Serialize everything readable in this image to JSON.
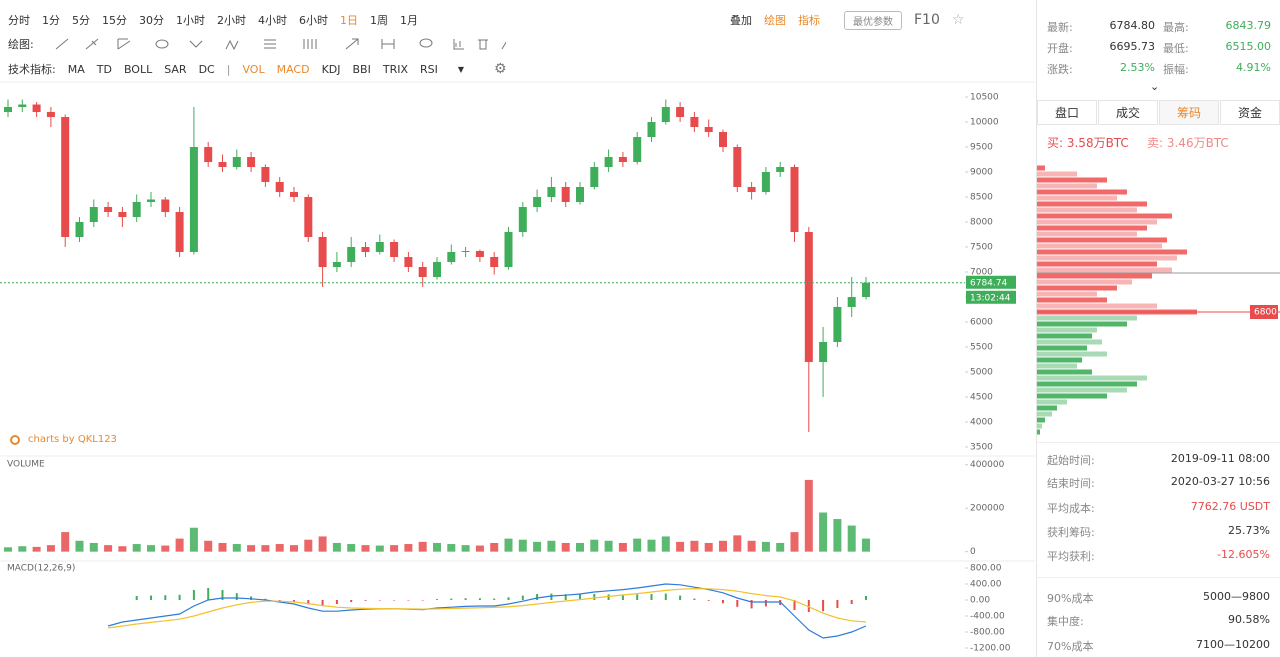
{
  "toolbar": {
    "periods": [
      "分时",
      "1分",
      "5分",
      "15分",
      "30分",
      "1小时",
      "2小时",
      "4小时",
      "6小时",
      "1日",
      "1周",
      "1月"
    ],
    "active": 9,
    "tools": [
      "叠加",
      "绘图",
      "指标"
    ],
    "button": "最优参数",
    "f10": "F10"
  },
  "draw_label": "绘图:",
  "indicator_label": "技术指标:",
  "indicators": [
    "MA",
    "TD",
    "BOLL",
    "SAR",
    "DC"
  ],
  "sub_indicators": [
    "VOL",
    "MACD",
    "KDJ",
    "BBI",
    "TRIX",
    "RSI"
  ],
  "watermark": "charts by QKL123",
  "chart_data": [
    {
      "type": "candlestick",
      "up_color": "#3fae5a",
      "down_color": "#e84b4b",
      "ylim": [
        3340,
        10740
      ],
      "yticks": [
        3500,
        4000,
        4500,
        5000,
        5500,
        6000,
        6500,
        7000,
        7500,
        8000,
        8500,
        9000,
        9500,
        10000,
        10500
      ],
      "last_price": 6784.74,
      "last_time": "13:02:44",
      "candles": [
        [
          10200,
          10450,
          10100,
          10300
        ],
        [
          10300,
          10450,
          10200,
          10350
        ],
        [
          10350,
          10400,
          10100,
          10200
        ],
        [
          10200,
          10300,
          9900,
          10100
        ],
        [
          10100,
          10150,
          7500,
          7700
        ],
        [
          7700,
          8100,
          7600,
          8000
        ],
        [
          8000,
          8450,
          7900,
          8300
        ],
        [
          8300,
          8400,
          8100,
          8200
        ],
        [
          8200,
          8300,
          7900,
          8100
        ],
        [
          8100,
          8550,
          8000,
          8400
        ],
        [
          8400,
          8600,
          8300,
          8450
        ],
        [
          8450,
          8500,
          8100,
          8200
        ],
        [
          8200,
          8300,
          7300,
          7400
        ],
        [
          7400,
          10300,
          7350,
          9500
        ],
        [
          9500,
          9600,
          9100,
          9200
        ],
        [
          9200,
          9350,
          9000,
          9100
        ],
        [
          9100,
          9450,
          9050,
          9300
        ],
        [
          9300,
          9400,
          9000,
          9100
        ],
        [
          9100,
          9150,
          8700,
          8800
        ],
        [
          8800,
          8900,
          8500,
          8600
        ],
        [
          8600,
          8700,
          8400,
          8500
        ],
        [
          8500,
          8550,
          7600,
          7700
        ],
        [
          7700,
          7800,
          6700,
          7100
        ],
        [
          7100,
          7400,
          7000,
          7200
        ],
        [
          7200,
          7700,
          7100,
          7500
        ],
        [
          7500,
          7600,
          7300,
          7400
        ],
        [
          7400,
          7750,
          7350,
          7600
        ],
        [
          7600,
          7650,
          7200,
          7300
        ],
        [
          7300,
          7400,
          7000,
          7100
        ],
        [
          7100,
          7200,
          6700,
          6900
        ],
        [
          6900,
          7300,
          6850,
          7200
        ],
        [
          7200,
          7550,
          7150,
          7400
        ],
        [
          7400,
          7500,
          7300,
          7420
        ],
        [
          7420,
          7450,
          7200,
          7300
        ],
        [
          7300,
          7400,
          6950,
          7100
        ],
        [
          7100,
          7900,
          7050,
          7800
        ],
        [
          7800,
          8400,
          7700,
          8300
        ],
        [
          8300,
          8650,
          8200,
          8500
        ],
        [
          8500,
          8900,
          8400,
          8700
        ],
        [
          8700,
          8800,
          8300,
          8400
        ],
        [
          8400,
          8800,
          8350,
          8700
        ],
        [
          8700,
          9200,
          8650,
          9100
        ],
        [
          9100,
          9450,
          9000,
          9300
        ],
        [
          9300,
          9400,
          9100,
          9200
        ],
        [
          9200,
          9800,
          9150,
          9700
        ],
        [
          9700,
          10100,
          9600,
          10000
        ],
        [
          10000,
          10450,
          9950,
          10300
        ],
        [
          10300,
          10400,
          10000,
          10100
        ],
        [
          10100,
          10200,
          9800,
          9900
        ],
        [
          9900,
          10050,
          9700,
          9800
        ],
        [
          9800,
          9850,
          9400,
          9500
        ],
        [
          9500,
          9550,
          8600,
          8700
        ],
        [
          8700,
          8800,
          8450,
          8600
        ],
        [
          8600,
          9100,
          8550,
          9000
        ],
        [
          9000,
          9200,
          8900,
          9100
        ],
        [
          9100,
          9150,
          7600,
          7800
        ],
        [
          7800,
          7900,
          3800,
          5200
        ],
        [
          5200,
          5900,
          4500,
          5600
        ],
        [
          5600,
          6500,
          5500,
          6300
        ],
        [
          6300,
          6900,
          6100,
          6500
        ],
        [
          6500,
          6900,
          6450,
          6785
        ]
      ]
    },
    {
      "type": "bar",
      "title": "VOLUME",
      "ylim": [
        -20000,
        440000
      ],
      "yticks": [
        0,
        200000,
        400000
      ],
      "values": [
        20000,
        25000,
        22000,
        30000,
        90000,
        50000,
        40000,
        30000,
        25000,
        35000,
        30000,
        28000,
        60000,
        110000,
        50000,
        40000,
        35000,
        30000,
        30000,
        35000,
        30000,
        55000,
        70000,
        40000,
        35000,
        30000,
        28000,
        30000,
        35000,
        45000,
        40000,
        35000,
        30000,
        28000,
        40000,
        60000,
        55000,
        45000,
        50000,
        40000,
        40000,
        55000,
        50000,
        40000,
        60000,
        55000,
        70000,
        45000,
        50000,
        40000,
        50000,
        75000,
        50000,
        45000,
        40000,
        90000,
        330000,
        180000,
        150000,
        120000,
        60000
      ]
    },
    {
      "type": "line",
      "title": "MACD(12,26,9)",
      "ylim": [
        -1300,
        900
      ],
      "yticks": [
        {
          "value": 800,
          "label": "800.00"
        },
        {
          "value": 400,
          "label": "400.00"
        },
        {
          "value": 0,
          "label": "0.00"
        },
        {
          "value": -400,
          "label": "-400.00"
        },
        {
          "value": -800,
          "label": "-800.00"
        },
        {
          "value": -1200,
          "label": "-1200.00"
        }
      ],
      "series": [
        {
          "color": "#2f7bd8",
          "values": [
            null,
            null,
            null,
            null,
            null,
            null,
            null,
            -650,
            -550,
            -500,
            -450,
            -400,
            -350,
            -150,
            0,
            50,
            50,
            30,
            0,
            -50,
            -100,
            -200,
            -280,
            -280,
            -250,
            -230,
            -220,
            -220,
            -230,
            -240,
            -200,
            -180,
            -160,
            -150,
            -150,
            -100,
            -30,
            50,
            100,
            120,
            150,
            200,
            230,
            260,
            300,
            350,
            400,
            380,
            320,
            260,
            180,
            50,
            -50,
            -50,
            -50,
            -400,
            -750,
            -950,
            -900,
            -800,
            -650
          ]
        },
        {
          "color": "#f2c12e",
          "values": [
            null,
            null,
            null,
            null,
            null,
            null,
            null,
            -700,
            -650,
            -600,
            -560,
            -520,
            -480,
            -400,
            -300,
            -200,
            -120,
            -60,
            -30,
            -30,
            -50,
            -90,
            -140,
            -180,
            -200,
            -210,
            -215,
            -218,
            -222,
            -228,
            -222,
            -214,
            -204,
            -194,
            -185,
            -168,
            -140,
            -100,
            -60,
            -25,
            10,
            50,
            90,
            125,
            160,
            200,
            240,
            270,
            285,
            280,
            260,
            220,
            160,
            110,
            75,
            -20,
            -170,
            -330,
            -450,
            -520,
            -550
          ]
        }
      ],
      "hist": [
        null,
        null,
        null,
        null,
        null,
        null,
        null,
        null,
        null,
        100,
        110,
        120,
        130,
        250,
        300,
        250,
        170,
        90,
        30,
        -20,
        -50,
        -110,
        -140,
        -100,
        -50,
        -20,
        -5,
        -2,
        -8,
        -12,
        22,
        34,
        44,
        44,
        35,
        68,
        110,
        150,
        160,
        145,
        140,
        150,
        140,
        135,
        140,
        150,
        160,
        110,
        35,
        -20,
        -80,
        -170,
        -210,
        -160,
        -125,
        -250,
        -300,
        -280,
        -200,
        -100,
        100
      ]
    },
    {
      "type": "bar",
      "orientation": "horizontal",
      "split": 6800,
      "color_above": "#ee5a5a",
      "color_below": "#3fae5a",
      "levels": [
        9200,
        9100,
        9000,
        8900,
        8800,
        8700,
        8600,
        8500,
        8400,
        8300,
        8200,
        8100,
        8000,
        7900,
        7800,
        7700,
        7600,
        7500,
        7400,
        7300,
        7200,
        7100,
        7000,
        6900,
        6800,
        6700,
        6600,
        6500,
        6400,
        6300,
        6200,
        6100,
        6000,
        5900,
        5800,
        5700,
        5600,
        5500,
        5400,
        5300,
        5200,
        5100,
        5000,
        4900,
        4800
      ],
      "values": [
        8,
        40,
        70,
        60,
        90,
        80,
        110,
        100,
        135,
        120,
        110,
        100,
        130,
        125,
        150,
        140,
        120,
        135,
        115,
        95,
        80,
        60,
        70,
        120,
        160,
        100,
        90,
        60,
        55,
        65,
        50,
        70,
        45,
        40,
        55,
        110,
        100,
        90,
        70,
        30,
        20,
        15,
        8,
        5,
        3
      ]
    }
  ],
  "panel": {
    "quote": [
      [
        "最新:",
        "6784.80"
      ],
      [
        "最高:",
        "6843.79"
      ],
      [
        "开盘:",
        "6695.73"
      ],
      [
        "最低:",
        "6515.00"
      ],
      [
        "涨跌:",
        "2.53%"
      ],
      [
        "振幅:",
        "4.91%"
      ]
    ],
    "tabs": [
      "盘口",
      "成交",
      "筹码",
      "资金"
    ],
    "active_tab": 2,
    "buy": "买: 3.58万BTC",
    "sell": "卖: 3.46万BTC",
    "info": [
      [
        "起始时间:",
        "2019-09-11 08:00"
      ],
      [
        "结束时间:",
        "2020-03-27 10:56"
      ],
      [
        "平均成本:",
        "7762.76 USDT"
      ],
      [
        "获利筹码:",
        "25.73%"
      ],
      [
        "平均获利:",
        "-12.605%"
      ]
    ],
    "info2": [
      [
        "90%成本",
        "5000—9800"
      ],
      [
        "集中度:",
        "90.58%"
      ],
      [
        "70%成本",
        "7100—10200"
      ]
    ]
  }
}
